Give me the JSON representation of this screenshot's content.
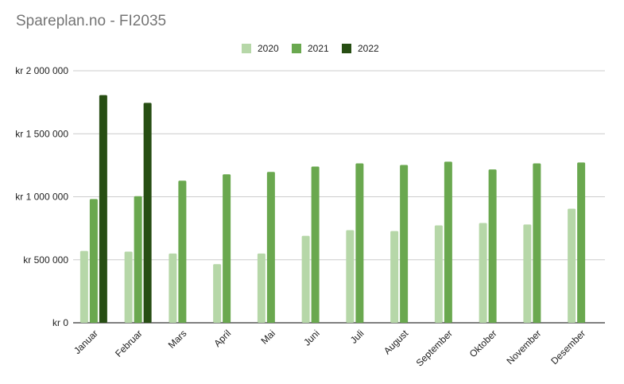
{
  "title": "Spareplan.no - FI2035",
  "chart_data": {
    "type": "bar",
    "title": "Spareplan.no - FI2035",
    "xlabel": "",
    "ylabel": "",
    "ylim": [
      0,
      2000000
    ],
    "yticks": [
      0,
      500000,
      1000000,
      1500000,
      2000000
    ],
    "ytick_labels": [
      "kr    0",
      "kr  500 000",
      "kr 1 000 000",
      "kr 1 500 000",
      "kr 2 000 000"
    ],
    "grid": true,
    "legend_position": "top-center",
    "categories": [
      "Januar",
      "Februar",
      "Mars",
      "April",
      "Mai",
      "Juni",
      "Juli",
      "August",
      "September",
      "Oktober",
      "November",
      "Desember"
    ],
    "series": [
      {
        "name": "2020",
        "color": "#b6d7a8",
        "values": [
          570000,
          565000,
          550000,
          465000,
          550000,
          690000,
          735000,
          728000,
          773000,
          792000,
          780000,
          905000
        ]
      },
      {
        "name": "2021",
        "color": "#6aa84f",
        "values": [
          982000,
          1005000,
          1128000,
          1178000,
          1197000,
          1240000,
          1265000,
          1252000,
          1278000,
          1217000,
          1265000,
          1272000
        ]
      },
      {
        "name": "2022",
        "color": "#274e13",
        "values": [
          1807000,
          1745000,
          null,
          null,
          null,
          null,
          null,
          null,
          null,
          null,
          null,
          null
        ]
      }
    ]
  }
}
